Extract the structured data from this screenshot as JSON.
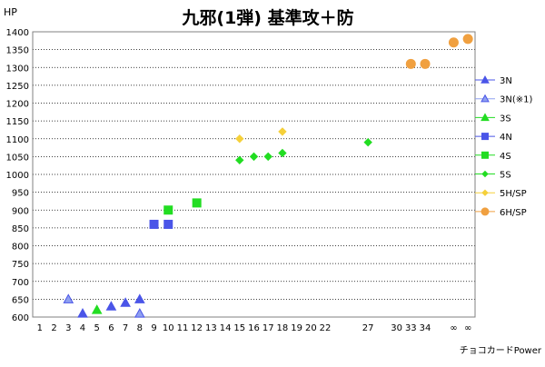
{
  "chart_data": {
    "type": "scatter",
    "title": "九邪(1弾) 基準攻＋防",
    "ylabel": "HP",
    "xlabel": "チョコカードPower",
    "ylim": [
      600,
      1400
    ],
    "y_ticks": [
      600,
      650,
      700,
      750,
      800,
      850,
      900,
      950,
      1000,
      1050,
      1100,
      1150,
      1200,
      1250,
      1300,
      1350,
      1400
    ],
    "x_categories": [
      "1",
      "2",
      "3",
      "4",
      "5",
      "6",
      "7",
      "8",
      "9",
      "10",
      "11",
      "12",
      "13",
      "14",
      "15",
      "16",
      "17",
      "18",
      "19",
      "20",
      "22",
      "",
      "",
      "27",
      "",
      "30",
      "33",
      "34",
      "",
      "∞",
      "∞"
    ],
    "grid": "horizontal-dotted",
    "legend_position": "right",
    "series": [
      {
        "name": "3N",
        "marker": "triangle",
        "color": "#4a55e8",
        "filled": true,
        "points": [
          {
            "x": "4",
            "y": 610
          },
          {
            "x": "6",
            "y": 630
          },
          {
            "x": "7",
            "y": 640
          },
          {
            "x": "8",
            "y": 650
          }
        ]
      },
      {
        "name": "3N(※1)",
        "marker": "triangle",
        "color": "#8fa0f0",
        "filled": true,
        "stroke": "#4a55e8",
        "points": [
          {
            "x": "3",
            "y": 650
          },
          {
            "x": "8",
            "y": 610
          }
        ]
      },
      {
        "name": "3S",
        "marker": "triangle",
        "color": "#22dd22",
        "filled": true,
        "points": [
          {
            "x": "5",
            "y": 620
          }
        ]
      },
      {
        "name": "4N",
        "marker": "square",
        "color": "#4a55e8",
        "filled": true,
        "points": [
          {
            "x": "9",
            "y": 860
          },
          {
            "x": "10",
            "y": 860
          }
        ]
      },
      {
        "name": "4S",
        "marker": "square",
        "color": "#22dd22",
        "filled": true,
        "points": [
          {
            "x": "10",
            "y": 900
          },
          {
            "x": "12",
            "y": 920
          }
        ]
      },
      {
        "name": "5S",
        "marker": "diamond",
        "color": "#22dd22",
        "filled": true,
        "points": [
          {
            "x": "15",
            "y": 1040
          },
          {
            "x": "16",
            "y": 1050
          },
          {
            "x": "17",
            "y": 1050
          },
          {
            "x": "18",
            "y": 1060
          },
          {
            "x": "27",
            "y": 1090
          }
        ]
      },
      {
        "name": "5H/SP",
        "marker": "diamond",
        "color": "#f5d03a",
        "filled": true,
        "points": [
          {
            "x": "15",
            "y": 1100
          },
          {
            "x": "18",
            "y": 1120
          }
        ]
      },
      {
        "name": "6H/SP",
        "marker": "circle",
        "color": "#f0a040",
        "filled": true,
        "points": [
          {
            "x": "33",
            "y": 1310
          },
          {
            "x": "34",
            "y": 1310
          },
          {
            "x": "∞",
            "y": 1370
          },
          {
            "x": "∞",
            "y": 1380
          }
        ]
      }
    ]
  }
}
